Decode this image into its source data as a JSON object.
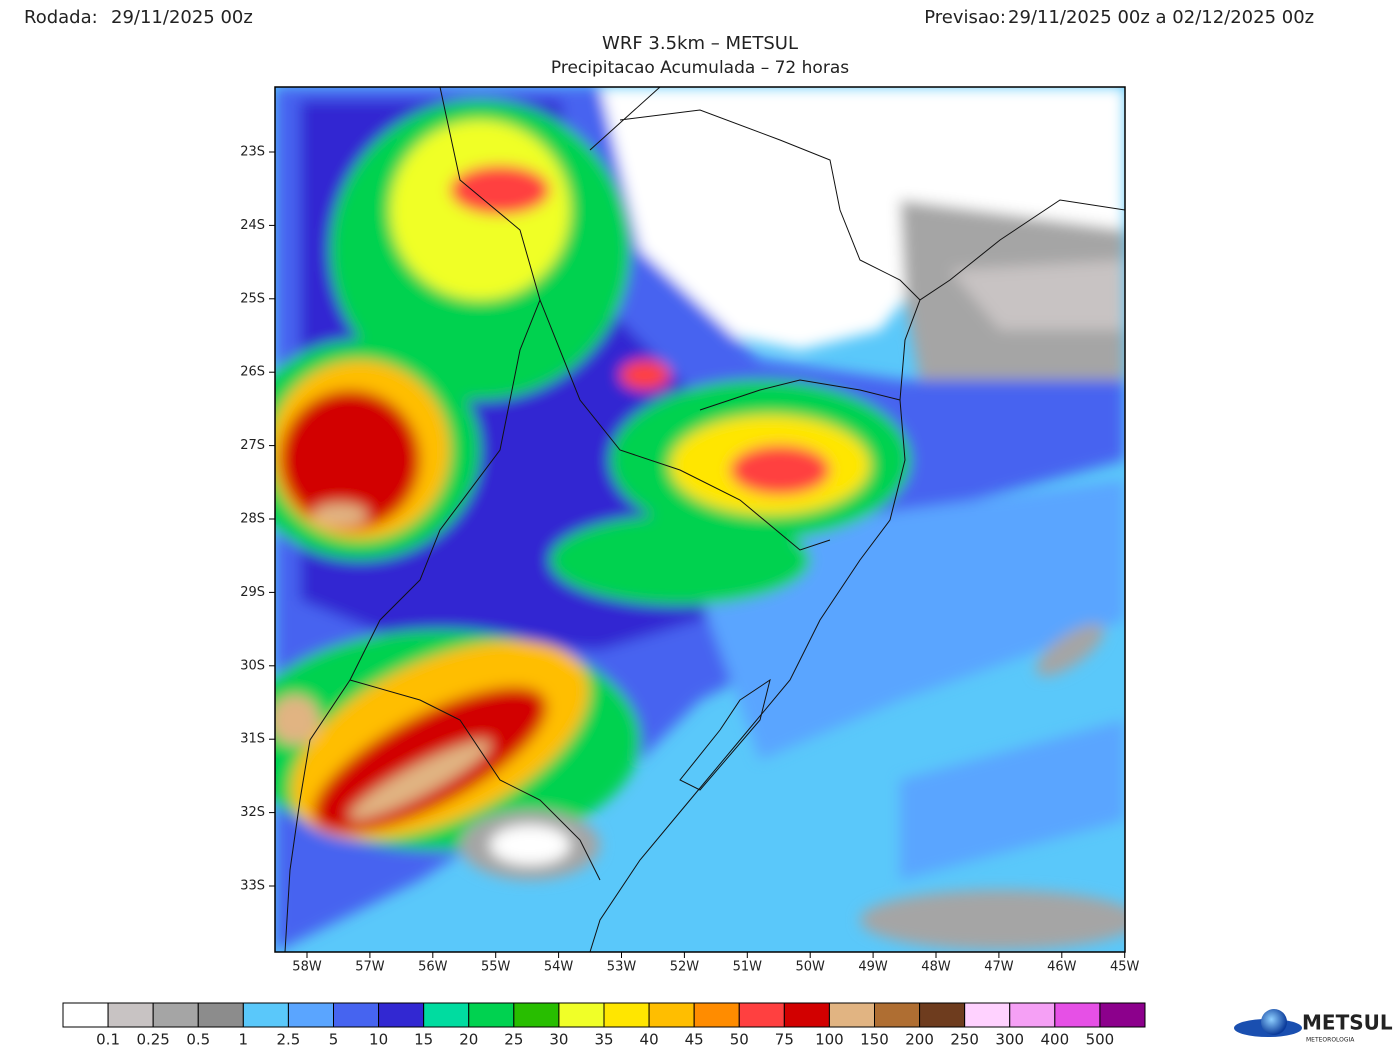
{
  "header": {
    "run_label": "Rodada:",
    "run_value": "29/11/2025 00z",
    "forecast_label": "Previsao:",
    "forecast_value": "29/11/2025 00z a 02/12/2025 00z"
  },
  "title": "WRF 3.5km – METSUL",
  "subtitle": "Precipitacao Acumulada – 72 horas",
  "map": {
    "lat_labels": [
      "23S",
      "24S",
      "25S",
      "26S",
      "27S",
      "28S",
      "29S",
      "30S",
      "31S",
      "32S",
      "33S"
    ],
    "lon_labels": [
      "58W",
      "57W",
      "56W",
      "55W",
      "54W",
      "53W",
      "52W",
      "51W",
      "50W",
      "49W",
      "48W",
      "47W",
      "46W",
      "45W"
    ]
  },
  "colorbar": {
    "colors": [
      "#ffffff",
      "#c8c3c3",
      "#a5a5a5",
      "#8c8c8c",
      "#5ac8fa",
      "#5aa5ff",
      "#4664f0",
      "#3228d2",
      "#00dca0",
      "#00d250",
      "#28be00",
      "#f0ff28",
      "#ffe600",
      "#ffbe00",
      "#ff8c00",
      "#ff4040",
      "#d20000",
      "#e1b482",
      "#af6e32",
      "#6e3c1e",
      "#ffd2ff",
      "#f5a0f5",
      "#e650e6",
      "#8c008c"
    ],
    "labels": [
      "0.1",
      "0.25",
      "0.5",
      "1",
      "2.5",
      "5",
      "10",
      "15",
      "20",
      "25",
      "30",
      "35",
      "40",
      "45",
      "50",
      "75",
      "100",
      "150",
      "200",
      "250",
      "300",
      "400",
      "500"
    ]
  },
  "logo": {
    "text": "METSUL",
    "subtext": "METEOROLOGIA"
  }
}
